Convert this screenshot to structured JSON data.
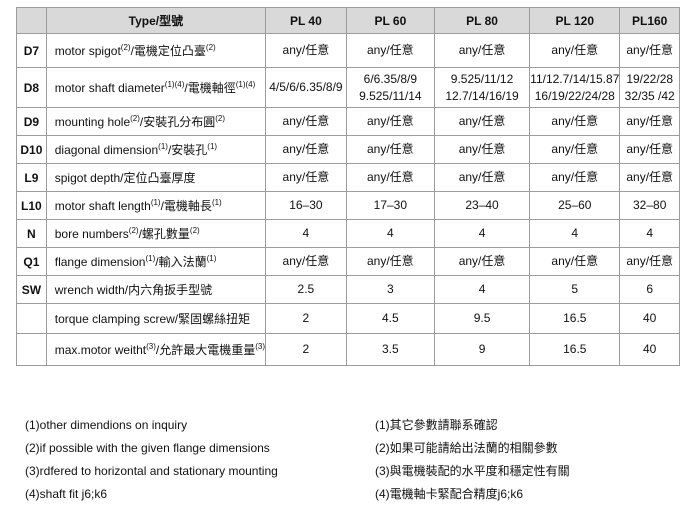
{
  "colors": {
    "header_bg": "#d9d9d9",
    "border": "#9c9c9c",
    "text": "#111111"
  },
  "table": {
    "header": {
      "corner": "",
      "type_label": "Type/型號",
      "columns": [
        "PL 40",
        "PL 60",
        "PL 80",
        "PL 120",
        "PL160"
      ]
    },
    "rows": [
      {
        "code": "D7",
        "desc": "motor spigot(2)/電機定位凸臺(2)",
        "values": [
          "any/任意",
          "any/任意",
          "any/任意",
          "any/任意",
          "any/任意"
        ]
      },
      {
        "code": "D8",
        "desc": "motor shaft diameter(1)(4)/電機軸徑(1)(4)",
        "values": [
          "4/5/6/6.35/8/9",
          "6/6.35/8/9\n9.525/11/14",
          "9.525/11/12\n12.7/14/16/19",
          "11/12.7/14/15.87\n16/19/22/24/28",
          "19/22/28\n32/35 /42"
        ]
      },
      {
        "code": "D9",
        "desc": "mounting hole(2)/安裝孔分布圓(2)",
        "values": [
          "any/任意",
          "any/任意",
          "any/任意",
          "any/任意",
          "any/任意"
        ]
      },
      {
        "code": "D10",
        "desc": "diagonal dimension(1)/安裝孔(1)",
        "values": [
          "any/任意",
          "any/任意",
          "any/任意",
          "any/任意",
          "any/任意"
        ]
      },
      {
        "code": "L9",
        "desc": "spigot depth/定位凸臺厚度",
        "values": [
          "any/任意",
          "any/任意",
          "any/任意",
          "any/任意",
          "any/任意"
        ]
      },
      {
        "code": "L10",
        "desc": "motor shaft length(1)/電機軸長(1)",
        "values": [
          "16–30",
          "17–30",
          "23–40",
          "25–60",
          "32–80"
        ]
      },
      {
        "code": "N",
        "desc": "bore numbers(2)/螺孔數量(2)",
        "values": [
          "4",
          "4",
          "4",
          "4",
          "4"
        ]
      },
      {
        "code": "Q1",
        "desc": "flange dimension(1)/輸入法蘭(1)",
        "values": [
          "any/任意",
          "any/任意",
          "any/任意",
          "any/任意",
          "any/任意"
        ]
      },
      {
        "code": "SW",
        "desc": "wrench width/内六角扳手型號",
        "values": [
          "2.5",
          "3",
          "4",
          "5",
          "6"
        ]
      },
      {
        "code": "",
        "desc": "torque clamping screw/緊固螺絲扭矩",
        "values": [
          "2",
          "4.5",
          "9.5",
          "16.5",
          "40"
        ]
      },
      {
        "code": "",
        "desc": "max.motor weitht(3)/允許最大電機重量(3)",
        "values": [
          "2",
          "3.5",
          "9",
          "16.5",
          "40"
        ]
      }
    ]
  },
  "footnotes": {
    "en": [
      "(1)other dimendions on inquiry",
      "(2)if possible with the given flange dimensions",
      "(3)rdfered to horizontal and stationary mounting",
      "(4)shaft fit j6;k6"
    ],
    "zh": [
      "(1)其它參數請聯系確認",
      "(2)如果可能請給出法蘭的相關參數",
      "(3)與電機裝配的水平度和穩定性有關",
      "(4)電機軸卡緊配合精度j6;k6"
    ]
  }
}
